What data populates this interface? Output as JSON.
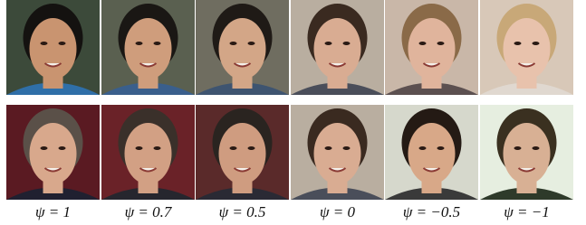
{
  "labels": [
    "ψ = 1",
    "ψ = 0.7",
    "ψ = 0.5",
    "ψ = 0",
    "ψ = −0.5",
    "ψ = −1"
  ]
}
